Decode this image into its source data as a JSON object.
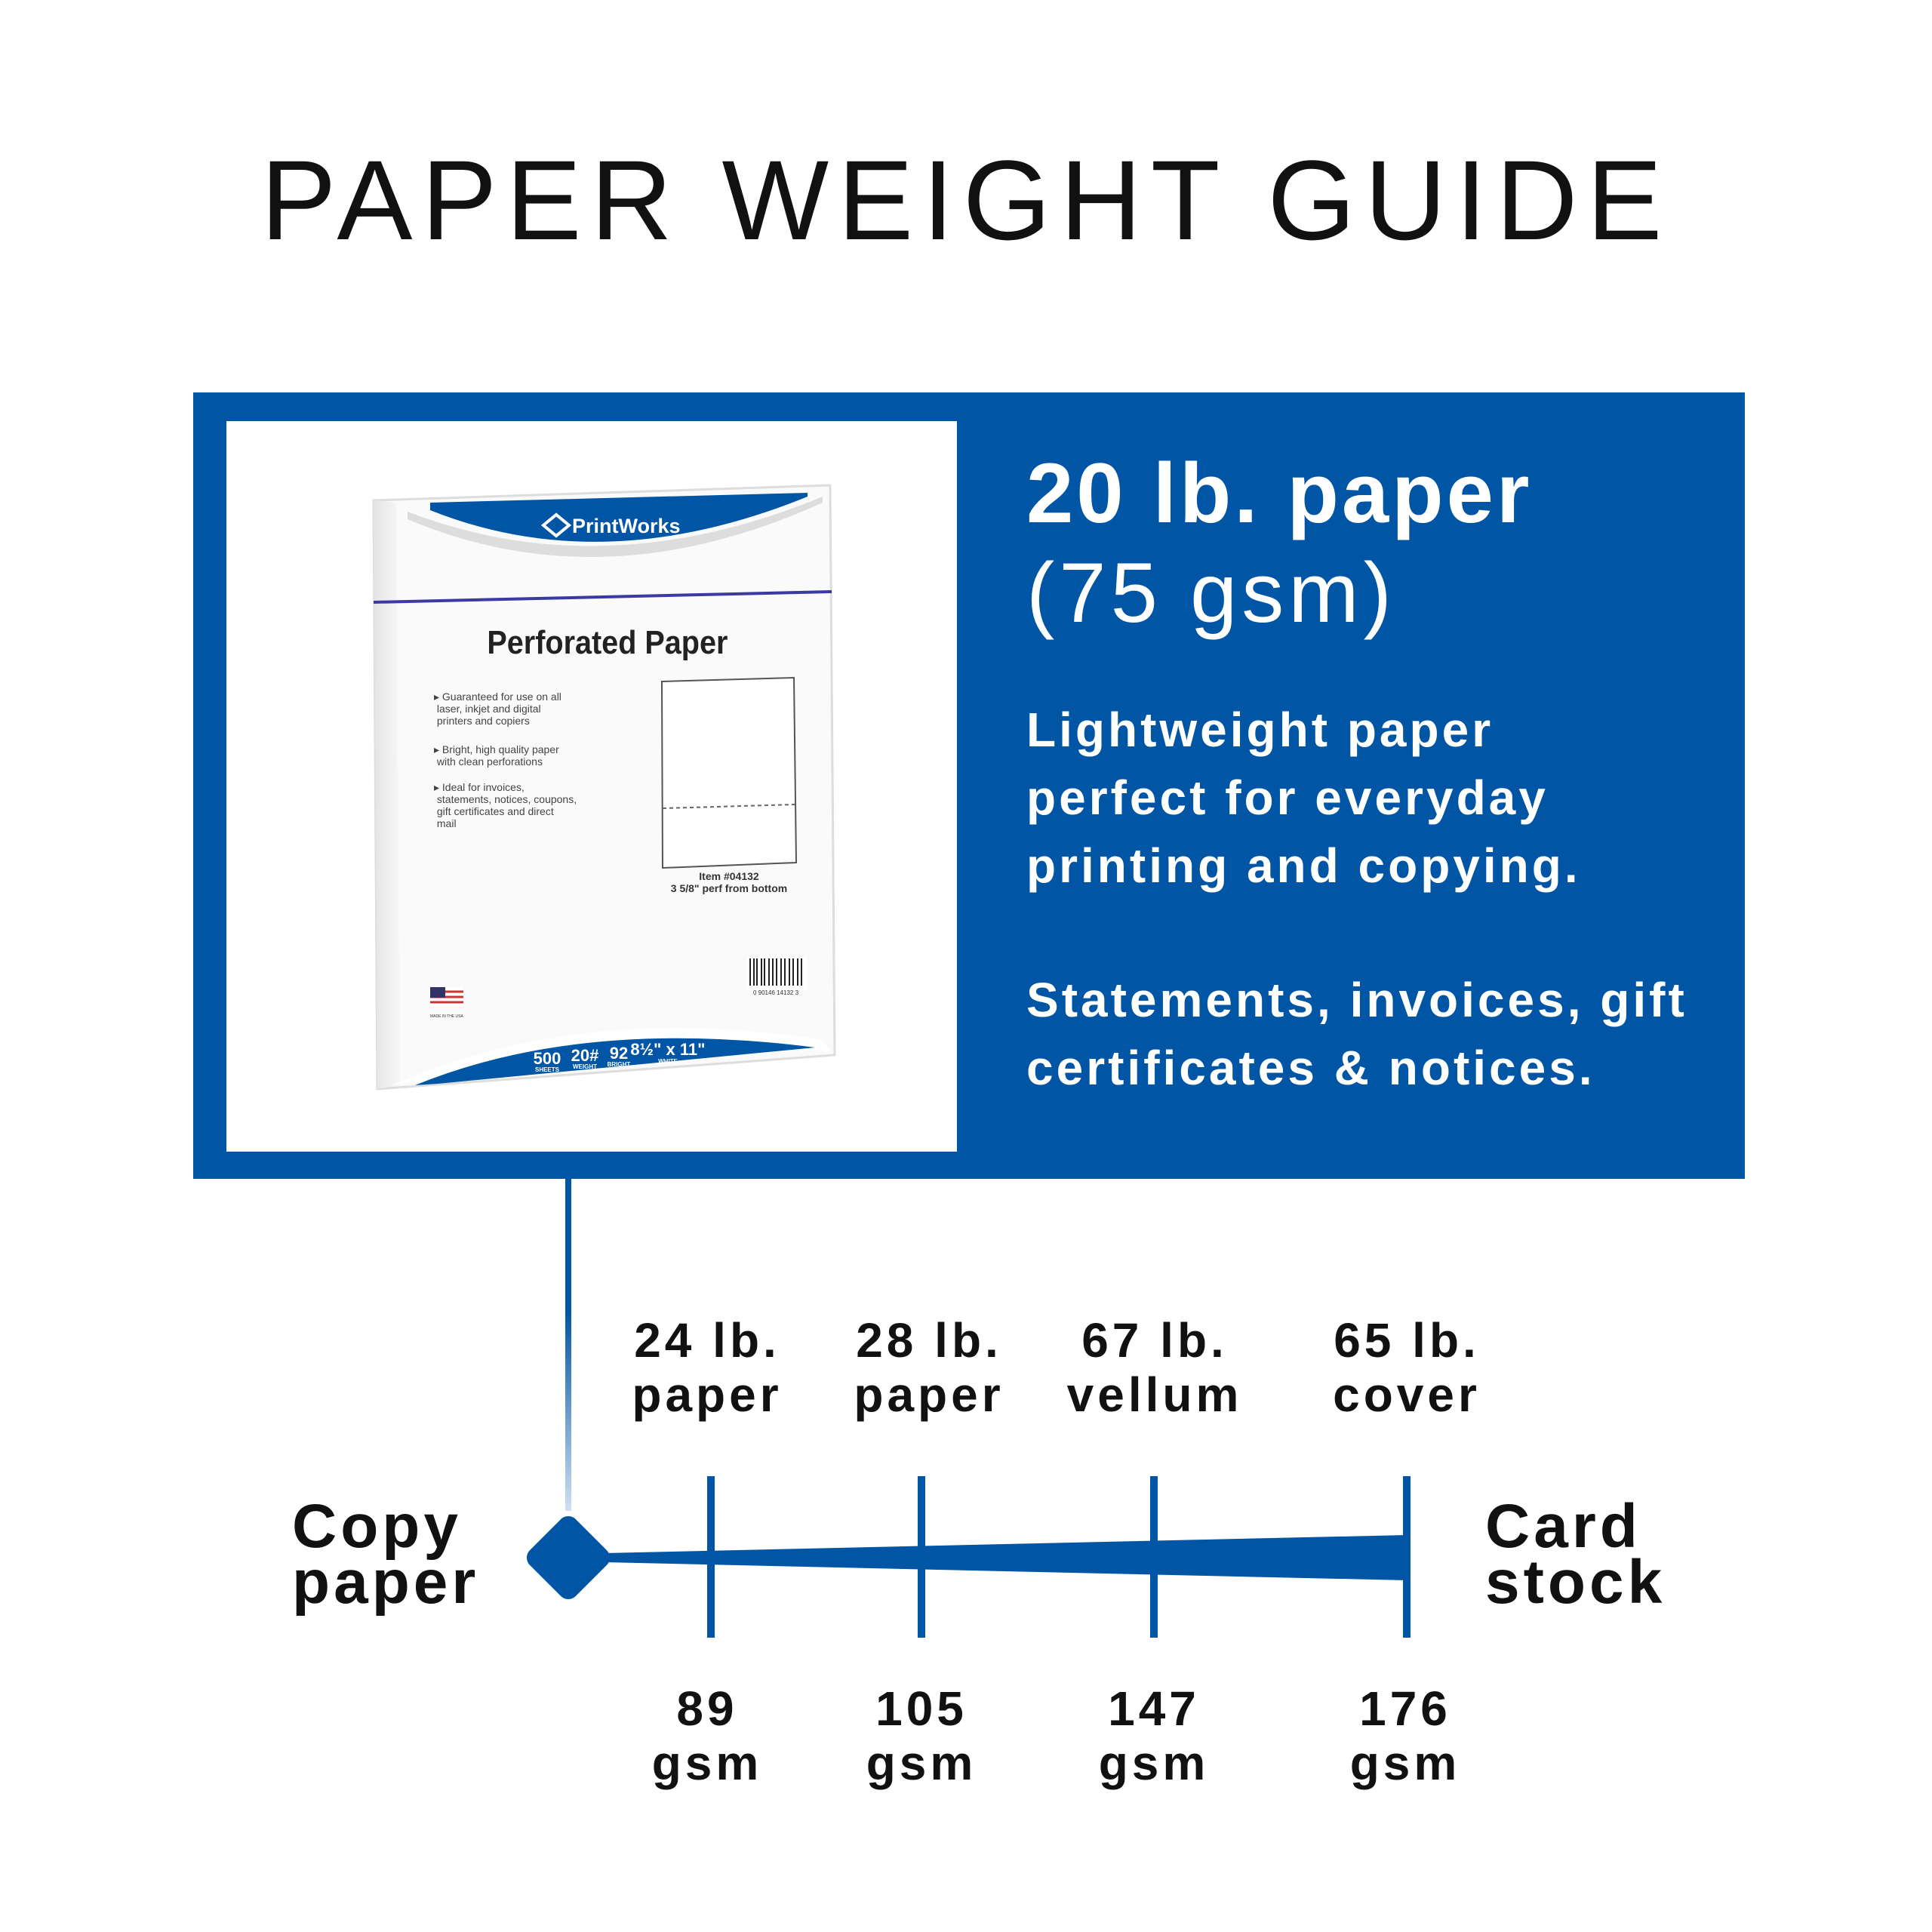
{
  "title": "PAPER WEIGHT GUIDE",
  "colors": {
    "brand_blue": "#0055a5",
    "text": "#111111",
    "background": "#ffffff"
  },
  "feature": {
    "weight": "20 lb. paper",
    "gsm": "(75 gsm)",
    "description": "Lightweight paper perfect for everyday printing and copying.",
    "uses": "Statements, invoices, gift certificates & notices."
  },
  "product": {
    "brand": "PrintWorks",
    "name": "Perforated Paper",
    "bullets": [
      "Guaranteed for use on all laser, inkjet and digital printers and copiers",
      "Bright, high quality paper with clean perforations",
      "Ideal for invoices, statements, notices, coupons, gift certificates and direct mail"
    ],
    "item": "Item #04132",
    "perf": "3 5/8\" perf from bottom",
    "made_in": "MADE IN THE USA",
    "barcode": "0 90146 14132 3",
    "specs": [
      {
        "value": "500",
        "label": "SHEETS"
      },
      {
        "value": "20#",
        "label": "WEIGHT"
      },
      {
        "value": "92",
        "label": "BRIGHT"
      },
      {
        "value": "8½\" x 11\"",
        "label": "WHITE"
      }
    ]
  },
  "scale": {
    "start_label": [
      "Copy",
      "paper"
    ],
    "end_label": [
      "Card",
      "stock"
    ],
    "marks": [
      {
        "top": [
          "24 lb.",
          "paper"
        ],
        "bottom": [
          "89",
          "gsm"
        ]
      },
      {
        "top": [
          "28 lb.",
          "paper"
        ],
        "bottom": [
          "105",
          "gsm"
        ]
      },
      {
        "top": [
          "67 lb.",
          "vellum"
        ],
        "bottom": [
          "147",
          "gsm"
        ]
      },
      {
        "top": [
          "65 lb.",
          "cover"
        ],
        "bottom": [
          "176",
          "gsm"
        ]
      }
    ]
  }
}
